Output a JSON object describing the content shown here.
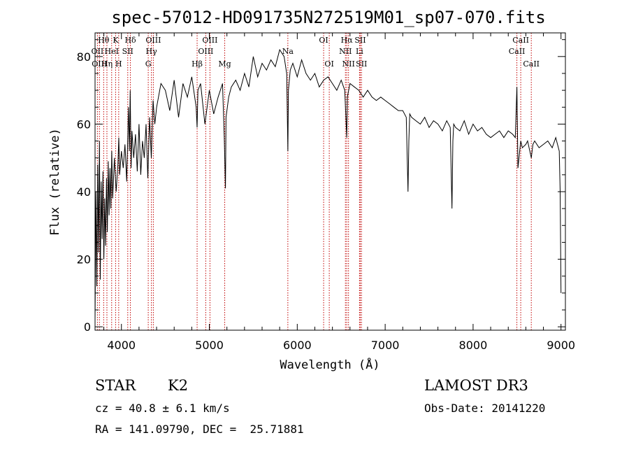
{
  "chart_data": {
    "type": "line",
    "title": "spec-57012-HD091735N272519M01_sp07-070.fits",
    "xlabel": "Wavelength (Å)",
    "ylabel": "Flux (relative)",
    "xlim": [
      3700,
      9050
    ],
    "ylim": [
      -1,
      87
    ],
    "x_ticks": [
      4000,
      5000,
      6000,
      7000,
      8000,
      9000
    ],
    "y_ticks": [
      0,
      20,
      40,
      60,
      80
    ],
    "series": [
      {
        "name": "flux",
        "x": [
          3700,
          3710,
          3720,
          3730,
          3740,
          3750,
          3760,
          3770,
          3780,
          3790,
          3800,
          3810,
          3820,
          3830,
          3840,
          3850,
          3860,
          3870,
          3880,
          3890,
          3900,
          3920,
          3940,
          3960,
          3970,
          3980,
          4000,
          4020,
          4040,
          4060,
          4080,
          4090,
          4100,
          4110,
          4120,
          4140,
          4160,
          4180,
          4200,
          4220,
          4240,
          4260,
          4280,
          4300,
          4320,
          4340,
          4360,
          4380,
          4400,
          4450,
          4500,
          4550,
          4600,
          4650,
          4700,
          4750,
          4800,
          4850,
          4861,
          4870,
          4900,
          4950,
          5000,
          5050,
          5100,
          5150,
          5170,
          5183,
          5190,
          5220,
          5250,
          5300,
          5350,
          5400,
          5450,
          5500,
          5550,
          5600,
          5650,
          5700,
          5750,
          5800,
          5850,
          5880,
          5893,
          5900,
          5920,
          5950,
          6000,
          6050,
          6100,
          6150,
          6200,
          6250,
          6300,
          6350,
          6400,
          6450,
          6500,
          6540,
          6563,
          6570,
          6600,
          6650,
          6700,
          6750,
          6800,
          6850,
          6900,
          6950,
          7000,
          7050,
          7100,
          7150,
          7200,
          7240,
          7260,
          7269,
          7280,
          7300,
          7350,
          7400,
          7450,
          7500,
          7550,
          7600,
          7650,
          7700,
          7740,
          7760,
          7770,
          7780,
          7800,
          7850,
          7900,
          7950,
          8000,
          8050,
          8100,
          8150,
          8200,
          8250,
          8300,
          8350,
          8400,
          8450,
          8480,
          8498,
          8510,
          8542,
          8560,
          8600,
          8620,
          8662,
          8680,
          8700,
          8750,
          8800,
          8850,
          8900,
          8940,
          8960,
          8980,
          8990,
          9000
        ],
        "values": [
          2,
          40,
          12,
          48,
          22,
          55,
          14,
          43,
          26,
          46,
          20,
          38,
          24,
          44,
          28,
          49,
          33,
          47,
          35,
          52,
          38,
          50,
          40,
          48,
          56,
          45,
          52,
          47,
          54,
          43,
          65,
          52,
          70,
          47,
          58,
          50,
          57,
          46,
          60,
          45,
          55,
          50,
          60,
          44,
          62,
          50,
          67,
          60,
          65,
          72,
          70,
          64,
          73,
          62,
          72,
          68,
          74,
          65,
          59,
          70,
          72,
          60,
          70,
          63,
          68,
          72,
          56,
          41,
          62,
          68,
          71,
          73,
          70,
          75,
          71,
          80,
          74,
          78,
          76,
          79,
          77,
          82,
          80,
          75,
          52,
          70,
          76,
          78,
          74,
          79,
          75,
          73,
          75,
          71,
          73,
          74,
          72,
          70,
          73,
          70,
          56,
          68,
          72,
          71,
          70,
          68,
          70,
          68,
          67,
          68,
          67,
          66,
          65,
          64,
          64,
          62,
          40,
          55,
          63,
          62,
          61,
          60,
          62,
          59,
          61,
          60,
          58,
          61,
          59,
          35,
          55,
          60,
          59,
          58,
          61,
          57,
          60,
          58,
          59,
          57,
          56,
          57,
          58,
          56,
          58,
          57,
          56,
          71,
          47,
          55,
          53,
          54,
          55,
          50,
          54,
          55,
          53,
          54,
          55,
          53,
          56,
          54,
          52,
          40,
          10
        ]
      }
    ],
    "lines": [
      {
        "label": "Hθ",
        "x": 3798,
        "row": 0
      },
      {
        "label": "OII",
        "x": 3727,
        "row": 1
      },
      {
        "label": "OIII",
        "x": 3750,
        "row": 2
      },
      {
        "label": "K",
        "x": 3934,
        "row": 0
      },
      {
        "label": "HeI",
        "x": 3889,
        "row": 1
      },
      {
        "label": "Hη",
        "x": 3835,
        "row": 2
      },
      {
        "label": "SII",
        "x": 4072,
        "row": 1
      },
      {
        "label": "H",
        "x": 3969,
        "row": 2
      },
      {
        "label": "Hδ",
        "x": 4102,
        "row": 0
      },
      {
        "label": "OIII",
        "x": 4363,
        "row": 0
      },
      {
        "label": "Hγ",
        "x": 4341,
        "row": 1
      },
      {
        "label": "G",
        "x": 4305,
        "row": 2
      },
      {
        "label": "Hβ",
        "x": 4861,
        "row": 2
      },
      {
        "label": "OIII",
        "x": 5007,
        "row": 0
      },
      {
        "label": "OIII",
        "x": 4959,
        "row": 1
      },
      {
        "label": "Mg",
        "x": 5175,
        "row": 2
      },
      {
        "label": "Na",
        "x": 5893,
        "row": 1
      },
      {
        "label": "OI",
        "x": 6300,
        "row": 0
      },
      {
        "label": "OI",
        "x": 6364,
        "row": 2
      },
      {
        "label": "Hα",
        "x": 6563,
        "row": 0
      },
      {
        "label": "NII",
        "x": 6548,
        "row": 1
      },
      {
        "label": "NII",
        "x": 6583,
        "row": 2
      },
      {
        "label": "SII",
        "x": 6717,
        "row": 0
      },
      {
        "label": "Li",
        "x": 6708,
        "row": 1
      },
      {
        "label": "SII",
        "x": 6731,
        "row": 2
      },
      {
        "label": "CaII",
        "x": 8542,
        "row": 0
      },
      {
        "label": "CaII",
        "x": 8498,
        "row": 1
      },
      {
        "label": "CaII",
        "x": 8662,
        "row": 2
      }
    ]
  },
  "info": {
    "class": "STAR",
    "subclass": "K2",
    "survey": "LAMOST DR3",
    "cz": "cz = 40.8 ± 6.1 km/s",
    "obs_date": "Obs-Date: 20141220",
    "radec": "RA = 141.09790, DEC =  25.71881"
  },
  "colors": {
    "axis": "#000000",
    "line_markers": "#c00000",
    "background": "#ffffff"
  }
}
